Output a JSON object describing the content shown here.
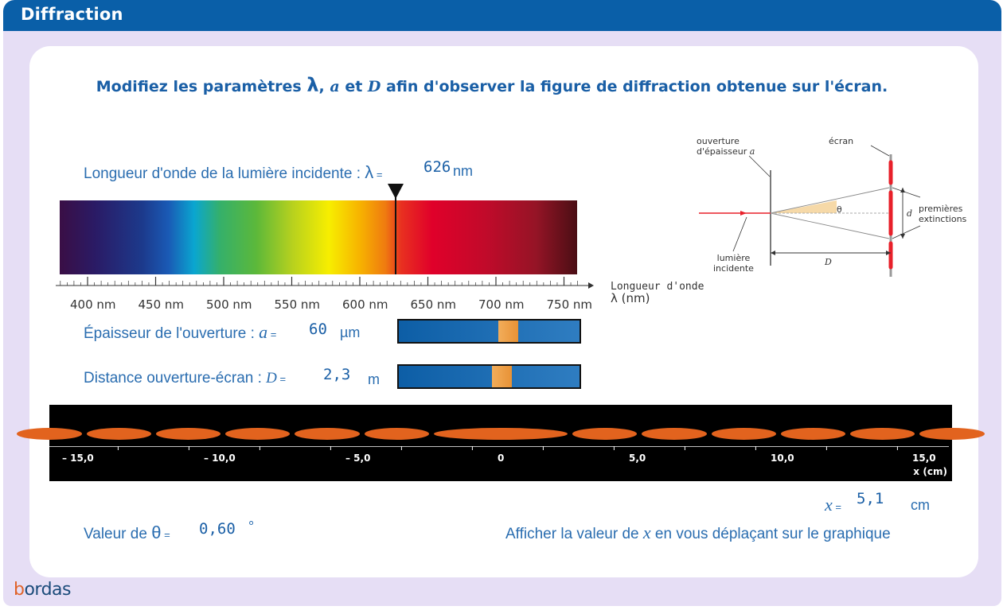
{
  "window": {
    "title": "Diffraction"
  },
  "instruction": {
    "before": "Modifiez les paramètres ",
    "lambda": "λ",
    "sep1": ", ",
    "a": "a",
    "sep2": " et ",
    "D": "D",
    "after": " afin d'observer la figure de diffraction obtenue sur l'écran."
  },
  "wavelength": {
    "label": "Longueur d'onde de la lumière incidente : ",
    "symbol": "λ",
    "equals": " =",
    "value": "626",
    "unit": "nm",
    "axis_ticks": [
      "400 nm",
      "450 nm",
      "500 nm",
      "550 nm",
      "600 nm",
      "650 nm",
      "700 nm",
      "750 nm"
    ],
    "axis_title_line1": "Longueur d'onde",
    "axis_title_line2": "λ (nm)"
  },
  "aperture": {
    "label": "Épaisseur de l'ouverture : ",
    "symbol": "a",
    "equals": " =",
    "value": "60",
    "unit": "µm",
    "slider_fraction": 0.62
  },
  "distance": {
    "label": "Distance ouverture-écran : ",
    "symbol": "D",
    "equals": " =",
    "value": "2,3",
    "unit": "m",
    "slider_fraction": 0.58
  },
  "pattern": {
    "ticks": [
      "– 15,0",
      "– 10,0",
      "– 5,0",
      "0",
      "5,0",
      "10,0",
      "15,0"
    ],
    "x_symbol": "x",
    "x_unit": "(cm)",
    "fringe_color": "#e2631e"
  },
  "x_readout": {
    "symbol": "x",
    "equals": " =",
    "value": "5,1",
    "unit": "cm"
  },
  "theta": {
    "label": "Valeur de ",
    "symbol": "θ",
    "equals": " =",
    "value": "0,60",
    "unit": "°"
  },
  "hint": {
    "before": "Afficher la valeur de ",
    "symbol": "x",
    "after": " en vous déplaçant sur le graphique"
  },
  "diagram": {
    "ouverture_line1": "ouverture",
    "ouverture_line2": "d'épaisseur ",
    "ouverture_a": "a",
    "ecran": "écran",
    "theta": "θ",
    "d": "d",
    "premieres": "premières",
    "extinctions": "extinctions",
    "lumiere": "lumière",
    "incidente": "incidente",
    "D": "D"
  },
  "logo": {
    "first": "b",
    "rest": "ordas"
  },
  "colors": {
    "titlebar": "#0a5fa8",
    "text_blue": "#2a6db0",
    "slider_thumb": "#e89236",
    "frame": "#e6def5"
  }
}
